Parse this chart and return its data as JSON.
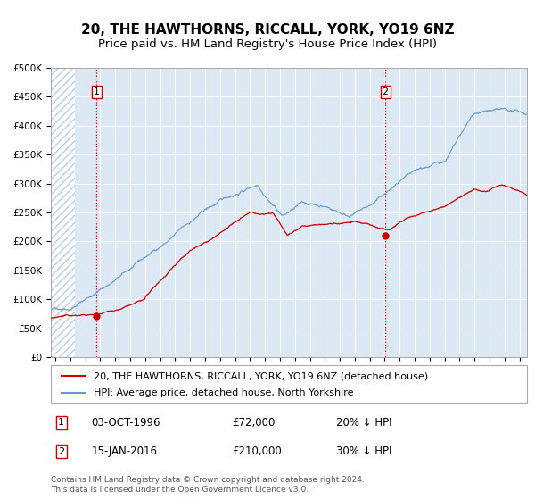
{
  "title": "20, THE HAWTHORNS, RICCALL, YORK, YO19 6NZ",
  "subtitle": "Price paid vs. HM Land Registry's House Price Index (HPI)",
  "legend_line1": "20, THE HAWTHORNS, RICCALL, YORK, YO19 6NZ (detached house)",
  "legend_line2": "HPI: Average price, detached house, North Yorkshire",
  "annotation1_date": "03-OCT-1996",
  "annotation1_price": "£72,000",
  "annotation1_label": "20% ↓ HPI",
  "annotation2_date": "15-JAN-2016",
  "annotation2_price": "£210,000",
  "annotation2_label": "30% ↓ HPI",
  "sale1_year": 1996.75,
  "sale2_year": 2016.04,
  "sale1_value": 72000,
  "sale2_value": 210000,
  "ylim": [
    0,
    500000
  ],
  "yticks": [
    0,
    50000,
    100000,
    150000,
    200000,
    250000,
    300000,
    350000,
    400000,
    450000,
    500000
  ],
  "xlim_start": 1993.7,
  "xlim_end": 2025.5,
  "hatch_end": 1995.3,
  "footer": "Contains HM Land Registry data © Crown copyright and database right 2024.\nThis data is licensed under the Open Government Licence v3.0.",
  "bg_color": "#dce9f5",
  "hatch_color": "#b8cfe0",
  "red_line_color": "#cc0000",
  "blue_line_color": "#6699cc",
  "dashed_vline_color": "#cc0000",
  "grid_color": "#ffffff",
  "title_fontsize": 11,
  "subtitle_fontsize": 9.5,
  "tick_fontsize": 7.5,
  "legend_fontsize": 8,
  "table_fontsize": 8.5,
  "footer_fontsize": 6.5
}
